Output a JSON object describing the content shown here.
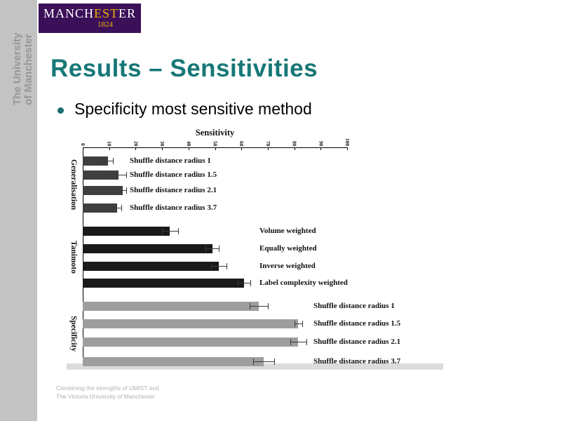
{
  "sidebar": {
    "line1": "The University",
    "line2": "of Manchester"
  },
  "banner": {
    "wordmark_prefix": "MANCH",
    "wordmark_accent": "EST",
    "wordmark_suffix": "ER",
    "year": "1824",
    "bg_color": "#3b1059",
    "accent_color": "#f2b400"
  },
  "slide": {
    "title": "Results – Sensitivities",
    "title_color": "#177777",
    "bullet": "Specificity most sensitive method"
  },
  "footer": {
    "line1": "Combining the strengths of UMIST and",
    "line2": "The Victoria University of Manchester"
  },
  "chart_data": {
    "type": "bar",
    "orientation": "horizontal",
    "title": "Sensitivity",
    "xlabel": "Sensitivity",
    "xlim": [
      0,
      100
    ],
    "x_ticks": [
      0,
      10,
      20,
      30,
      40,
      50,
      60,
      70,
      80,
      90,
      100
    ],
    "grid": false,
    "legend_position": "none",
    "groups": [
      {
        "name": "Generalisation",
        "bar_color": "#3f3f3f",
        "bars": [
          {
            "label": "Shuffle distance radius 1",
            "value": 9.5,
            "error": 2
          },
          {
            "label": "Shuffle distance radius 1.5",
            "value": 13.5,
            "error": 3
          },
          {
            "label": "Shuffle distance radius 2.1",
            "value": 15,
            "error": 1.5
          },
          {
            "label": "Shuffle distance radius 3.7",
            "value": 13,
            "error": 1.5
          }
        ]
      },
      {
        "name": "Tanimoto",
        "bar_color": "#1a1a1a",
        "bars": [
          {
            "label": "Volume weighted",
            "value": 33,
            "error": 3
          },
          {
            "label": "Equally weighted",
            "value": 49,
            "error": 2.5
          },
          {
            "label": "Inverse weighted",
            "value": 51.5,
            "error": 3
          },
          {
            "label": "Label complexity weighted",
            "value": 61,
            "error": 2.5
          }
        ]
      },
      {
        "name": "Specificity",
        "bar_color": "#9e9e9e",
        "bars": [
          {
            "label": "Shuffle distance radius 1",
            "value": 66.5,
            "error": 3.5
          },
          {
            "label": "Shuffle distance radius 1.5",
            "value": 81.5,
            "error": 1.5
          },
          {
            "label": "Shuffle distance radius 2.1",
            "value": 81.5,
            "error": 3
          },
          {
            "label": "Shuffle distance radius 3.7",
            "value": 68.5,
            "error": 4
          }
        ]
      }
    ]
  }
}
